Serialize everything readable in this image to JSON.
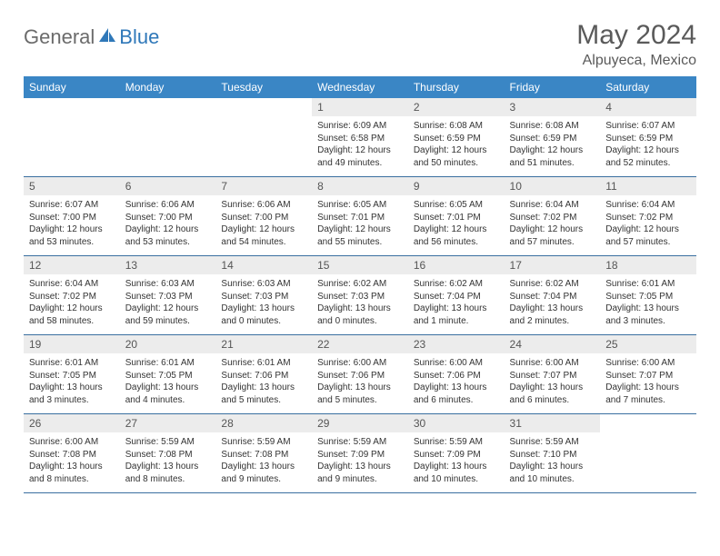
{
  "brand": {
    "part1": "General",
    "part2": "Blue"
  },
  "title": "May 2024",
  "location": "Alpuyeca, Mexico",
  "colors": {
    "header_bg": "#3a86c5",
    "header_text": "#ffffff",
    "daynum_bg": "#ececec",
    "row_rule": "#3a6fa0",
    "brand_gray": "#6b6b6b",
    "brand_blue": "#2f78b9",
    "title_color": "#5a5a5a"
  },
  "weekdays": [
    "Sunday",
    "Monday",
    "Tuesday",
    "Wednesday",
    "Thursday",
    "Friday",
    "Saturday"
  ],
  "weeks": [
    [
      null,
      null,
      null,
      {
        "n": "1",
        "sr": "Sunrise: 6:09 AM",
        "ss": "Sunset: 6:58 PM",
        "d1": "Daylight: 12 hours",
        "d2": "and 49 minutes."
      },
      {
        "n": "2",
        "sr": "Sunrise: 6:08 AM",
        "ss": "Sunset: 6:59 PM",
        "d1": "Daylight: 12 hours",
        "d2": "and 50 minutes."
      },
      {
        "n": "3",
        "sr": "Sunrise: 6:08 AM",
        "ss": "Sunset: 6:59 PM",
        "d1": "Daylight: 12 hours",
        "d2": "and 51 minutes."
      },
      {
        "n": "4",
        "sr": "Sunrise: 6:07 AM",
        "ss": "Sunset: 6:59 PM",
        "d1": "Daylight: 12 hours",
        "d2": "and 52 minutes."
      }
    ],
    [
      {
        "n": "5",
        "sr": "Sunrise: 6:07 AM",
        "ss": "Sunset: 7:00 PM",
        "d1": "Daylight: 12 hours",
        "d2": "and 53 minutes."
      },
      {
        "n": "6",
        "sr": "Sunrise: 6:06 AM",
        "ss": "Sunset: 7:00 PM",
        "d1": "Daylight: 12 hours",
        "d2": "and 53 minutes."
      },
      {
        "n": "7",
        "sr": "Sunrise: 6:06 AM",
        "ss": "Sunset: 7:00 PM",
        "d1": "Daylight: 12 hours",
        "d2": "and 54 minutes."
      },
      {
        "n": "8",
        "sr": "Sunrise: 6:05 AM",
        "ss": "Sunset: 7:01 PM",
        "d1": "Daylight: 12 hours",
        "d2": "and 55 minutes."
      },
      {
        "n": "9",
        "sr": "Sunrise: 6:05 AM",
        "ss": "Sunset: 7:01 PM",
        "d1": "Daylight: 12 hours",
        "d2": "and 56 minutes."
      },
      {
        "n": "10",
        "sr": "Sunrise: 6:04 AM",
        "ss": "Sunset: 7:02 PM",
        "d1": "Daylight: 12 hours",
        "d2": "and 57 minutes."
      },
      {
        "n": "11",
        "sr": "Sunrise: 6:04 AM",
        "ss": "Sunset: 7:02 PM",
        "d1": "Daylight: 12 hours",
        "d2": "and 57 minutes."
      }
    ],
    [
      {
        "n": "12",
        "sr": "Sunrise: 6:04 AM",
        "ss": "Sunset: 7:02 PM",
        "d1": "Daylight: 12 hours",
        "d2": "and 58 minutes."
      },
      {
        "n": "13",
        "sr": "Sunrise: 6:03 AM",
        "ss": "Sunset: 7:03 PM",
        "d1": "Daylight: 12 hours",
        "d2": "and 59 minutes."
      },
      {
        "n": "14",
        "sr": "Sunrise: 6:03 AM",
        "ss": "Sunset: 7:03 PM",
        "d1": "Daylight: 13 hours",
        "d2": "and 0 minutes."
      },
      {
        "n": "15",
        "sr": "Sunrise: 6:02 AM",
        "ss": "Sunset: 7:03 PM",
        "d1": "Daylight: 13 hours",
        "d2": "and 0 minutes."
      },
      {
        "n": "16",
        "sr": "Sunrise: 6:02 AM",
        "ss": "Sunset: 7:04 PM",
        "d1": "Daylight: 13 hours",
        "d2": "and 1 minute."
      },
      {
        "n": "17",
        "sr": "Sunrise: 6:02 AM",
        "ss": "Sunset: 7:04 PM",
        "d1": "Daylight: 13 hours",
        "d2": "and 2 minutes."
      },
      {
        "n": "18",
        "sr": "Sunrise: 6:01 AM",
        "ss": "Sunset: 7:05 PM",
        "d1": "Daylight: 13 hours",
        "d2": "and 3 minutes."
      }
    ],
    [
      {
        "n": "19",
        "sr": "Sunrise: 6:01 AM",
        "ss": "Sunset: 7:05 PM",
        "d1": "Daylight: 13 hours",
        "d2": "and 3 minutes."
      },
      {
        "n": "20",
        "sr": "Sunrise: 6:01 AM",
        "ss": "Sunset: 7:05 PM",
        "d1": "Daylight: 13 hours",
        "d2": "and 4 minutes."
      },
      {
        "n": "21",
        "sr": "Sunrise: 6:01 AM",
        "ss": "Sunset: 7:06 PM",
        "d1": "Daylight: 13 hours",
        "d2": "and 5 minutes."
      },
      {
        "n": "22",
        "sr": "Sunrise: 6:00 AM",
        "ss": "Sunset: 7:06 PM",
        "d1": "Daylight: 13 hours",
        "d2": "and 5 minutes."
      },
      {
        "n": "23",
        "sr": "Sunrise: 6:00 AM",
        "ss": "Sunset: 7:06 PM",
        "d1": "Daylight: 13 hours",
        "d2": "and 6 minutes."
      },
      {
        "n": "24",
        "sr": "Sunrise: 6:00 AM",
        "ss": "Sunset: 7:07 PM",
        "d1": "Daylight: 13 hours",
        "d2": "and 6 minutes."
      },
      {
        "n": "25",
        "sr": "Sunrise: 6:00 AM",
        "ss": "Sunset: 7:07 PM",
        "d1": "Daylight: 13 hours",
        "d2": "and 7 minutes."
      }
    ],
    [
      {
        "n": "26",
        "sr": "Sunrise: 6:00 AM",
        "ss": "Sunset: 7:08 PM",
        "d1": "Daylight: 13 hours",
        "d2": "and 8 minutes."
      },
      {
        "n": "27",
        "sr": "Sunrise: 5:59 AM",
        "ss": "Sunset: 7:08 PM",
        "d1": "Daylight: 13 hours",
        "d2": "and 8 minutes."
      },
      {
        "n": "28",
        "sr": "Sunrise: 5:59 AM",
        "ss": "Sunset: 7:08 PM",
        "d1": "Daylight: 13 hours",
        "d2": "and 9 minutes."
      },
      {
        "n": "29",
        "sr": "Sunrise: 5:59 AM",
        "ss": "Sunset: 7:09 PM",
        "d1": "Daylight: 13 hours",
        "d2": "and 9 minutes."
      },
      {
        "n": "30",
        "sr": "Sunrise: 5:59 AM",
        "ss": "Sunset: 7:09 PM",
        "d1": "Daylight: 13 hours",
        "d2": "and 10 minutes."
      },
      {
        "n": "31",
        "sr": "Sunrise: 5:59 AM",
        "ss": "Sunset: 7:10 PM",
        "d1": "Daylight: 13 hours",
        "d2": "and 10 minutes."
      },
      null
    ]
  ]
}
